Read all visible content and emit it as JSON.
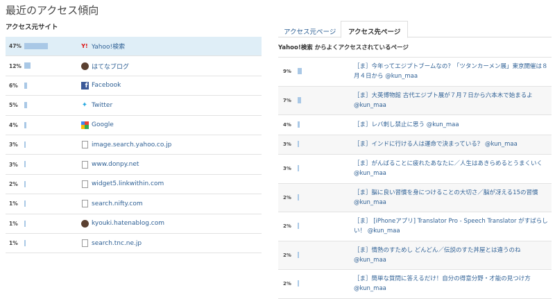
{
  "page_title": "最近のアクセス傾向",
  "sources": {
    "heading": "アクセス元サイト",
    "items": [
      {
        "pct": "47%",
        "value": 47,
        "name": "Yahoo!検索",
        "icon": "yahoo-icon"
      },
      {
        "pct": "12%",
        "value": 12,
        "name": "はてなブログ",
        "icon": "hatena-icon"
      },
      {
        "pct": "6%",
        "value": 6,
        "name": "Facebook",
        "icon": "facebook-icon"
      },
      {
        "pct": "5%",
        "value": 5,
        "name": "Twitter",
        "icon": "twitter-icon"
      },
      {
        "pct": "4%",
        "value": 4,
        "name": "Google",
        "icon": "google-icon"
      },
      {
        "pct": "3%",
        "value": 3,
        "name": "image.search.yahoo.co.jp",
        "icon": "page-icon"
      },
      {
        "pct": "3%",
        "value": 3,
        "name": "www.donpy.net",
        "icon": "page-icon"
      },
      {
        "pct": "2%",
        "value": 2,
        "name": "widget5.linkwithin.com",
        "icon": "page-icon"
      },
      {
        "pct": "1%",
        "value": 1,
        "name": "search.nifty.com",
        "icon": "page-icon"
      },
      {
        "pct": "1%",
        "value": 1,
        "name": "kyouki.hatenablog.com",
        "icon": "hatena-icon"
      },
      {
        "pct": "1%",
        "value": 1,
        "name": "search.tnc.ne.jp",
        "icon": "page-icon"
      }
    ]
  },
  "tabs": [
    {
      "label": "アクセス元ページ",
      "active": false
    },
    {
      "label": "アクセス先ページ",
      "active": true
    }
  ],
  "pages": {
    "heading": "Yahoo!検索 からよくアクセスされているページ",
    "items": [
      {
        "pct": "9%",
        "value": 9,
        "title": "［ま］今年ってエジプトブームなの？「ツタンカーメン展」東京開催は８月４日から @kun_maa"
      },
      {
        "pct": "7%",
        "value": 7,
        "title": "［ま］大英博物館 古代エジプト展が７月７日から六本木で始まるよ @kun_maa"
      },
      {
        "pct": "4%",
        "value": 4,
        "title": "［ま］レバ刺し禁止に思う @kun_maa"
      },
      {
        "pct": "3%",
        "value": 3,
        "title": "［ま］インドに行ける人は運命で決まっている？ @kun_maa"
      },
      {
        "pct": "3%",
        "value": 3,
        "title": "［ま］がんばることに疲れたあなたに／人生はあきらめるとうまくいく @kun_maa"
      },
      {
        "pct": "2%",
        "value": 2,
        "title": "［ま］脳に良い習慣を身につけることの大切さ／脳が冴える15の習慣 @kun_maa"
      },
      {
        "pct": "2%",
        "value": 2,
        "title": "［ま］ [iPhoneアプリ] Translator Pro - Speech Translator がすばらしい！ @kun_maa"
      },
      {
        "pct": "2%",
        "value": 2,
        "title": "［ま］情熱のすためし どんどん／伝説のすた丼屋とは違うのね @kun_maa"
      },
      {
        "pct": "2%",
        "value": 2,
        "title": "［ま］簡単な質問に答えるだけ！自分の得意分野・才能の見つけ方 @kun_maa"
      }
    ]
  },
  "colors": {
    "bar": "#a9c8e6",
    "link": "#2d5f94",
    "highlight": "#dfeef7"
  }
}
